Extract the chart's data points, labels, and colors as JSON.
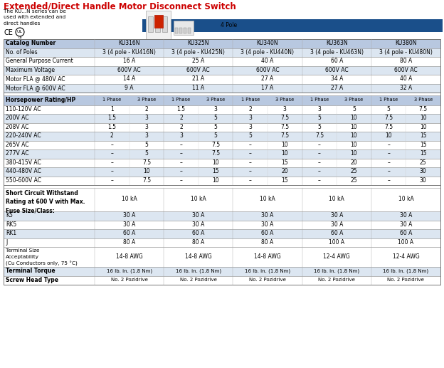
{
  "title": "Extended/Direct Handle Motor Disconnect Switch",
  "subtitle": "The KU...N series can be\nused with extended and\ndirect handles",
  "image_label": "4 Pole",
  "bg_color": "#ffffff",
  "title_color": "#cc0000",
  "blue_banner": "#1a4f8a",
  "row_bg_light": "#dce6f1",
  "row_bg_white": "#ffffff",
  "bold_row_bg": "#b8c8e0",
  "specs": [
    [
      "Catalog Number",
      "KU316N",
      "KU325N",
      "KU340N",
      "KU363N",
      "KU380N"
    ],
    [
      "No. of Poles",
      "3 (4 pole - KU416N)",
      "3 (4 pole - KU425N)",
      "3 (4 pole - KU440N)",
      "3 (4 pole - KU463N)",
      "3 (4 pole - KU480N)"
    ],
    [
      "General Purpose Current",
      "16 A",
      "25 A",
      "40 A",
      "60 A",
      "80 A"
    ],
    [
      "Maximum Voltage",
      "600V AC",
      "600V AC",
      "600V AC",
      "600V AC",
      "600V AC"
    ],
    [
      "Motor FLA @ 480V AC",
      "14 A",
      "21 A",
      "27 A",
      "34 A",
      "40 A"
    ],
    [
      "Motor FLA @ 600V AC",
      "9 A",
      "11 A",
      "17 A",
      "27 A",
      "32 A"
    ]
  ],
  "hp_header": [
    "Horsepower Rating/HP",
    "1 Phase",
    "3 Phase",
    "1 Phase",
    "3 Phase",
    "1 Phase",
    "3 Phase",
    "1 Phase",
    "3 Phase",
    "1 Phase",
    "3 Phase"
  ],
  "hp_rows": [
    [
      "110-120V AC",
      "1",
      "2",
      "1.5",
      "3",
      "2",
      "3",
      "3",
      "5",
      "5",
      "7.5"
    ],
    [
      "200V AC",
      "1.5",
      "3",
      "2",
      "5",
      "3",
      "7.5",
      "5",
      "10",
      "7.5",
      "10"
    ],
    [
      "208V AC",
      "1.5",
      "3",
      "2",
      "5",
      "3",
      "7.5",
      "5",
      "10",
      "7.5",
      "10"
    ],
    [
      "220-240V AC",
      "2",
      "3",
      "3",
      "5",
      "5",
      "7.5",
      "7.5",
      "10",
      "10",
      "15"
    ],
    [
      "265V AC",
      "–",
      "5",
      "–",
      "7.5",
      "–",
      "10",
      "–",
      "10",
      "–",
      "15"
    ],
    [
      "277V AC",
      "–",
      "5",
      "–",
      "7.5",
      "–",
      "10",
      "–",
      "10",
      "–",
      "15"
    ],
    [
      "380-415V AC",
      "–",
      "7.5",
      "–",
      "10",
      "–",
      "15",
      "–",
      "20",
      "–",
      "25"
    ],
    [
      "440-480V AC",
      "–",
      "10",
      "–",
      "15",
      "–",
      "20",
      "–",
      "25",
      "–",
      "30"
    ],
    [
      "550-600V AC",
      "–",
      "7.5",
      "–",
      "10",
      "–",
      "15",
      "–",
      "25",
      "–",
      "30"
    ]
  ],
  "sc_header": "Short Circuit Withstand\nRating at 600 V with Max.\nFuse Size/Class:",
  "sc_values": [
    "10 kA",
    "10 kA",
    "10 kA",
    "10 kA",
    "10 kA"
  ],
  "fuse_rows": [
    [
      "K5",
      "30 A",
      "30 A",
      "30 A",
      "30 A",
      "30 A"
    ],
    [
      "RK5",
      "30 A",
      "30 A",
      "30 A",
      "30 A",
      "30 A"
    ],
    [
      "RK1",
      "60 A",
      "60 A",
      "60 A",
      "60 A",
      "60 A"
    ],
    [
      "J",
      "80 A",
      "80 A",
      "80 A",
      "100 A",
      "100 A"
    ]
  ],
  "terminal_label": "Terminal Size\nAcceptability\n(Cu Conductors only, 75 °C)",
  "terminal_values": [
    "14-8 AWG",
    "14-8 AWG",
    "14-8 AWG",
    "12-4 AWG",
    "12-4 AWG"
  ],
  "torque_label": "Terminal Torque",
  "torque_values": [
    "16 lb. in. (1.8 Nm)",
    "16 lb. in. (1.8 Nm)",
    "16 lb. in. (1.8 Nm)",
    "16 lb. in. (1.8 Nm)",
    "16 lb. in. (1.8 Nm)"
  ],
  "screw_label": "Screw Head Type",
  "screw_values": [
    "No. 2 Pozidrive",
    "No. 2 Pozidrive",
    "No. 2 Pozidrive",
    "No. 2 Pozidrive",
    "No. 2 Pozidrive"
  ]
}
